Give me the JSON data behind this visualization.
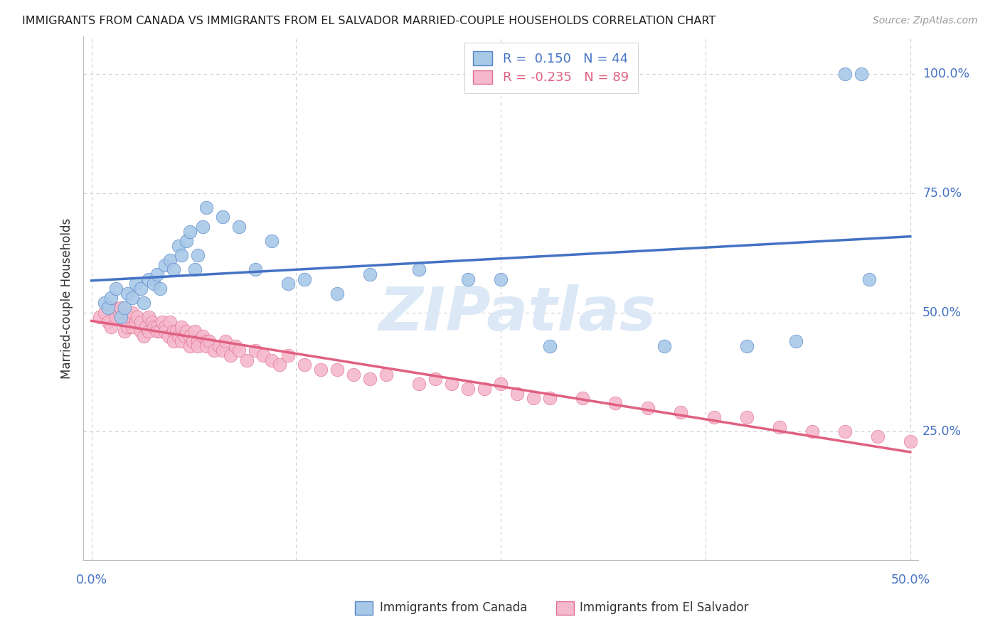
{
  "title": "IMMIGRANTS FROM CANADA VS IMMIGRANTS FROM EL SALVADOR MARRIED-COUPLE HOUSEHOLDS CORRELATION CHART",
  "source": "Source: ZipAtlas.com",
  "ylabel": "Married-couple Households",
  "ytick_labels": [
    "100.0%",
    "75.0%",
    "50.0%",
    "25.0%"
  ],
  "ytick_positions": [
    1.0,
    0.75,
    0.5,
    0.25
  ],
  "xtick_labels": [
    "0.0%",
    "50.0%"
  ],
  "xlim": [
    -0.005,
    0.505
  ],
  "ylim": [
    -0.02,
    1.08
  ],
  "canada_color": "#a8c8e8",
  "canada_edge_color": "#5585c8",
  "canada_line_color": "#4472c4",
  "salvador_color": "#f5b8cc",
  "salvador_edge_color": "#e07090",
  "salvador_line_color": "#e06080",
  "canada_R": 0.15,
  "canada_N": 44,
  "salvador_R": -0.235,
  "salvador_N": 89,
  "legend_label_canada": "Immigrants from Canada",
  "legend_label_salvador": "Immigrants from El Salvador",
  "canada_x": [
    0.008,
    0.01,
    0.012,
    0.015,
    0.018,
    0.02,
    0.022,
    0.025,
    0.027,
    0.03,
    0.032,
    0.035,
    0.038,
    0.04,
    0.042,
    0.045,
    0.048,
    0.05,
    0.053,
    0.055,
    0.058,
    0.06,
    0.063,
    0.065,
    0.068,
    0.07,
    0.08,
    0.09,
    0.1,
    0.11,
    0.12,
    0.13,
    0.15,
    0.17,
    0.2,
    0.23,
    0.25,
    0.28,
    0.35,
    0.4,
    0.43,
    0.46,
    0.47,
    0.475
  ],
  "canada_y": [
    0.52,
    0.51,
    0.53,
    0.55,
    0.49,
    0.51,
    0.54,
    0.53,
    0.56,
    0.55,
    0.52,
    0.57,
    0.56,
    0.58,
    0.55,
    0.6,
    0.61,
    0.59,
    0.64,
    0.62,
    0.65,
    0.67,
    0.59,
    0.62,
    0.68,
    0.72,
    0.7,
    0.68,
    0.59,
    0.65,
    0.56,
    0.57,
    0.54,
    0.58,
    0.59,
    0.57,
    0.57,
    0.43,
    0.43,
    0.43,
    0.44,
    1.0,
    1.0,
    0.57
  ],
  "salvador_x": [
    0.005,
    0.008,
    0.01,
    0.012,
    0.013,
    0.015,
    0.017,
    0.018,
    0.02,
    0.02,
    0.022,
    0.023,
    0.025,
    0.025,
    0.027,
    0.028,
    0.03,
    0.03,
    0.032,
    0.033,
    0.035,
    0.035,
    0.037,
    0.038,
    0.04,
    0.04,
    0.042,
    0.043,
    0.045,
    0.045,
    0.047,
    0.048,
    0.05,
    0.05,
    0.052,
    0.053,
    0.055,
    0.055,
    0.057,
    0.058,
    0.06,
    0.06,
    0.062,
    0.063,
    0.065,
    0.065,
    0.068,
    0.07,
    0.07,
    0.072,
    0.075,
    0.078,
    0.08,
    0.082,
    0.085,
    0.088,
    0.09,
    0.095,
    0.1,
    0.105,
    0.11,
    0.115,
    0.12,
    0.13,
    0.14,
    0.15,
    0.16,
    0.17,
    0.18,
    0.2,
    0.21,
    0.22,
    0.23,
    0.24,
    0.25,
    0.26,
    0.27,
    0.28,
    0.3,
    0.32,
    0.34,
    0.36,
    0.38,
    0.4,
    0.42,
    0.44,
    0.46,
    0.48,
    0.5
  ],
  "salvador_y": [
    0.49,
    0.5,
    0.48,
    0.47,
    0.51,
    0.49,
    0.5,
    0.51,
    0.48,
    0.46,
    0.47,
    0.49,
    0.5,
    0.47,
    0.48,
    0.49,
    0.46,
    0.48,
    0.45,
    0.47,
    0.49,
    0.46,
    0.48,
    0.47,
    0.47,
    0.46,
    0.46,
    0.48,
    0.47,
    0.46,
    0.45,
    0.48,
    0.46,
    0.44,
    0.46,
    0.45,
    0.44,
    0.47,
    0.45,
    0.46,
    0.43,
    0.45,
    0.44,
    0.46,
    0.44,
    0.43,
    0.45,
    0.44,
    0.43,
    0.44,
    0.42,
    0.43,
    0.42,
    0.44,
    0.41,
    0.43,
    0.42,
    0.4,
    0.42,
    0.41,
    0.4,
    0.39,
    0.41,
    0.39,
    0.38,
    0.38,
    0.37,
    0.36,
    0.37,
    0.35,
    0.36,
    0.35,
    0.34,
    0.34,
    0.35,
    0.33,
    0.32,
    0.32,
    0.32,
    0.31,
    0.3,
    0.29,
    0.28,
    0.28,
    0.26,
    0.25,
    0.25,
    0.24,
    0.23
  ],
  "background_color": "#ffffff",
  "grid_color": "#cccccc",
  "watermark_text": "ZIPatlas",
  "watermark_color": "#dce8f5"
}
